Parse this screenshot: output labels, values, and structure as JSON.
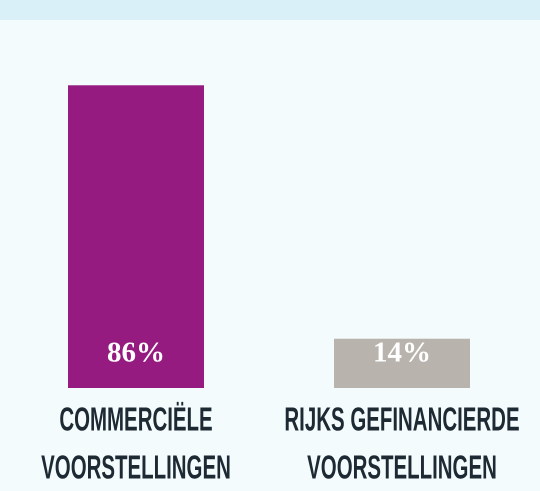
{
  "chart_data": {
    "type": "bar",
    "categories": [
      "COMMERCIËLE VOORSTELLINGEN",
      "RIJKS GEFINANCIERDE VOORSTELLINGEN"
    ],
    "values": [
      86,
      14
    ],
    "value_labels": [
      "86%",
      "14%"
    ],
    "colors": [
      "#951b81",
      "#b8b4ad"
    ],
    "ylim": [
      0,
      100
    ]
  }
}
